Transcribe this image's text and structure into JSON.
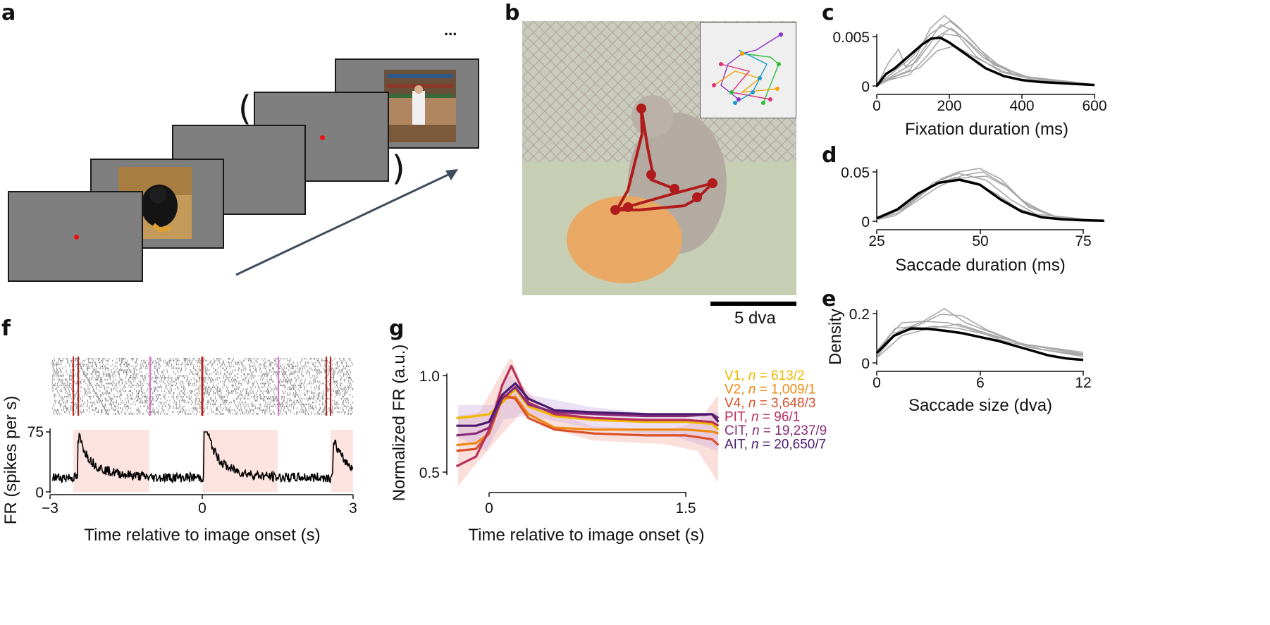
{
  "panels": {
    "a": "a",
    "b": "b",
    "c": "c",
    "d": "d",
    "e": "e",
    "f": "f",
    "g": "g"
  },
  "panel_a": {
    "ellipsis": "...",
    "paren_open": "(",
    "paren_close": ")"
  },
  "panel_b": {
    "scale_label": "5 dva"
  },
  "chart_data": [
    {
      "id": "c",
      "type": "line",
      "xlabel": "Fixation duration (ms)",
      "ylabel": "",
      "xlim": [
        0,
        600
      ],
      "ylim": [
        0,
        0.006
      ],
      "xticks": [
        "0",
        "200",
        "400",
        "600"
      ],
      "yticks": [
        "0",
        "0.005"
      ],
      "mean": {
        "x": [
          0,
          25,
          50,
          75,
          100,
          125,
          150,
          175,
          200,
          250,
          300,
          350,
          400,
          450,
          500,
          550,
          600
        ],
        "y": [
          0,
          0.0012,
          0.0018,
          0.0026,
          0.0034,
          0.0042,
          0.0048,
          0.0049,
          0.0044,
          0.0031,
          0.0018,
          0.001,
          0.0006,
          0.0004,
          0.0003,
          0.0002,
          0.0001
        ]
      }
    },
    {
      "id": "d",
      "type": "line",
      "xlabel": "Saccade duration (ms)",
      "ylabel": "",
      "xlim": [
        25,
        80
      ],
      "ylim": [
        0,
        0.055
      ],
      "xticks": [
        "25",
        "50",
        "75"
      ],
      "yticks": [
        "0",
        "0.05"
      ],
      "mean": {
        "x": [
          25,
          30,
          35,
          40,
          45,
          50,
          55,
          60,
          65,
          70,
          75,
          80
        ],
        "y": [
          0.003,
          0.012,
          0.028,
          0.039,
          0.042,
          0.037,
          0.022,
          0.01,
          0.004,
          0.002,
          0.001,
          0.0005
        ]
      }
    },
    {
      "id": "e",
      "type": "line",
      "xlabel": "Saccade size (dva)",
      "ylabel": "Density",
      "xlim": [
        0,
        12
      ],
      "ylim": [
        0,
        0.22
      ],
      "xticks": [
        "0",
        "6",
        "12"
      ],
      "yticks": [
        "0",
        "0.2"
      ],
      "mean": {
        "x": [
          0,
          1,
          2,
          3,
          4,
          5,
          6,
          7,
          8,
          9,
          10,
          11,
          12
        ],
        "y": [
          0.04,
          0.11,
          0.14,
          0.138,
          0.13,
          0.12,
          0.105,
          0.09,
          0.07,
          0.05,
          0.03,
          0.018,
          0.012
        ]
      }
    },
    {
      "id": "f",
      "type": "line",
      "xlabel": "Time relative to image onset (s)",
      "ylabel": "FR (spikes per s)",
      "xlim": [
        -3,
        3
      ],
      "ylim": [
        0,
        75
      ],
      "xticks": [
        "−3",
        "0",
        "3"
      ],
      "yticks": [
        "0",
        "75"
      ]
    },
    {
      "id": "g",
      "type": "line",
      "xlabel": "Time relative to image onset (s)",
      "ylabel": "Normalized FR (a.u.)",
      "xlim": [
        -0.25,
        1.75
      ],
      "ylim": [
        0.5,
        1.05
      ],
      "xticks": [
        "0",
        "1.5"
      ],
      "yticks": [
        "0.5",
        "1.0"
      ],
      "series": [
        {
          "name": "V1",
          "n": "613/2",
          "color": "#f0b800",
          "x": [
            -0.25,
            -0.1,
            0,
            0.1,
            0.2,
            0.3,
            0.5,
            0.8,
            1.2,
            1.5,
            1.7,
            1.75
          ],
          "y": [
            0.78,
            0.79,
            0.8,
            0.86,
            0.93,
            0.84,
            0.79,
            0.77,
            0.76,
            0.76,
            0.75,
            0.72
          ]
        },
        {
          "name": "V2",
          "n": "1,009/1",
          "color": "#ee8a12",
          "x": [
            -0.25,
            -0.1,
            0,
            0.1,
            0.2,
            0.3,
            0.5,
            0.8,
            1.2,
            1.5,
            1.7,
            1.75
          ],
          "y": [
            0.64,
            0.65,
            0.7,
            0.88,
            0.89,
            0.8,
            0.73,
            0.72,
            0.72,
            0.72,
            0.71,
            0.7
          ]
        },
        {
          "name": "V4",
          "n": "3,648/3",
          "color": "#d9502a",
          "x": [
            -0.25,
            -0.1,
            0,
            0.1,
            0.2,
            0.3,
            0.5,
            0.8,
            1.2,
            1.5,
            1.7,
            1.75
          ],
          "y": [
            0.61,
            0.62,
            0.7,
            0.9,
            0.88,
            0.78,
            0.72,
            0.7,
            0.69,
            0.69,
            0.67,
            0.64
          ]
        },
        {
          "name": "PIT",
          "n": "96/1",
          "color": "#b8305a",
          "x": [
            -0.25,
            -0.1,
            0,
            0.1,
            0.17,
            0.3,
            0.5,
            0.8,
            1.2,
            1.5,
            1.7,
            1.75
          ],
          "y": [
            0.53,
            0.58,
            0.72,
            0.95,
            1.05,
            0.86,
            0.8,
            0.78,
            0.77,
            0.77,
            0.76,
            0.74
          ]
        },
        {
          "name": "CIT",
          "n": "19,237/9",
          "color": "#8a2a78",
          "x": [
            -0.25,
            -0.1,
            0,
            0.1,
            0.2,
            0.3,
            0.5,
            0.8,
            1.2,
            1.5,
            1.7,
            1.75
          ],
          "y": [
            0.69,
            0.7,
            0.73,
            0.88,
            0.94,
            0.85,
            0.81,
            0.8,
            0.79,
            0.79,
            0.8,
            0.78
          ]
        },
        {
          "name": "AIT",
          "n": "20,650/7",
          "color": "#4a1a6e",
          "x": [
            -0.25,
            -0.1,
            0,
            0.1,
            0.2,
            0.3,
            0.5,
            0.8,
            1.2,
            1.5,
            1.7,
            1.75
          ],
          "y": [
            0.74,
            0.74,
            0.76,
            0.9,
            0.96,
            0.88,
            0.82,
            0.81,
            0.8,
            0.8,
            0.8,
            0.76
          ]
        }
      ]
    }
  ]
}
